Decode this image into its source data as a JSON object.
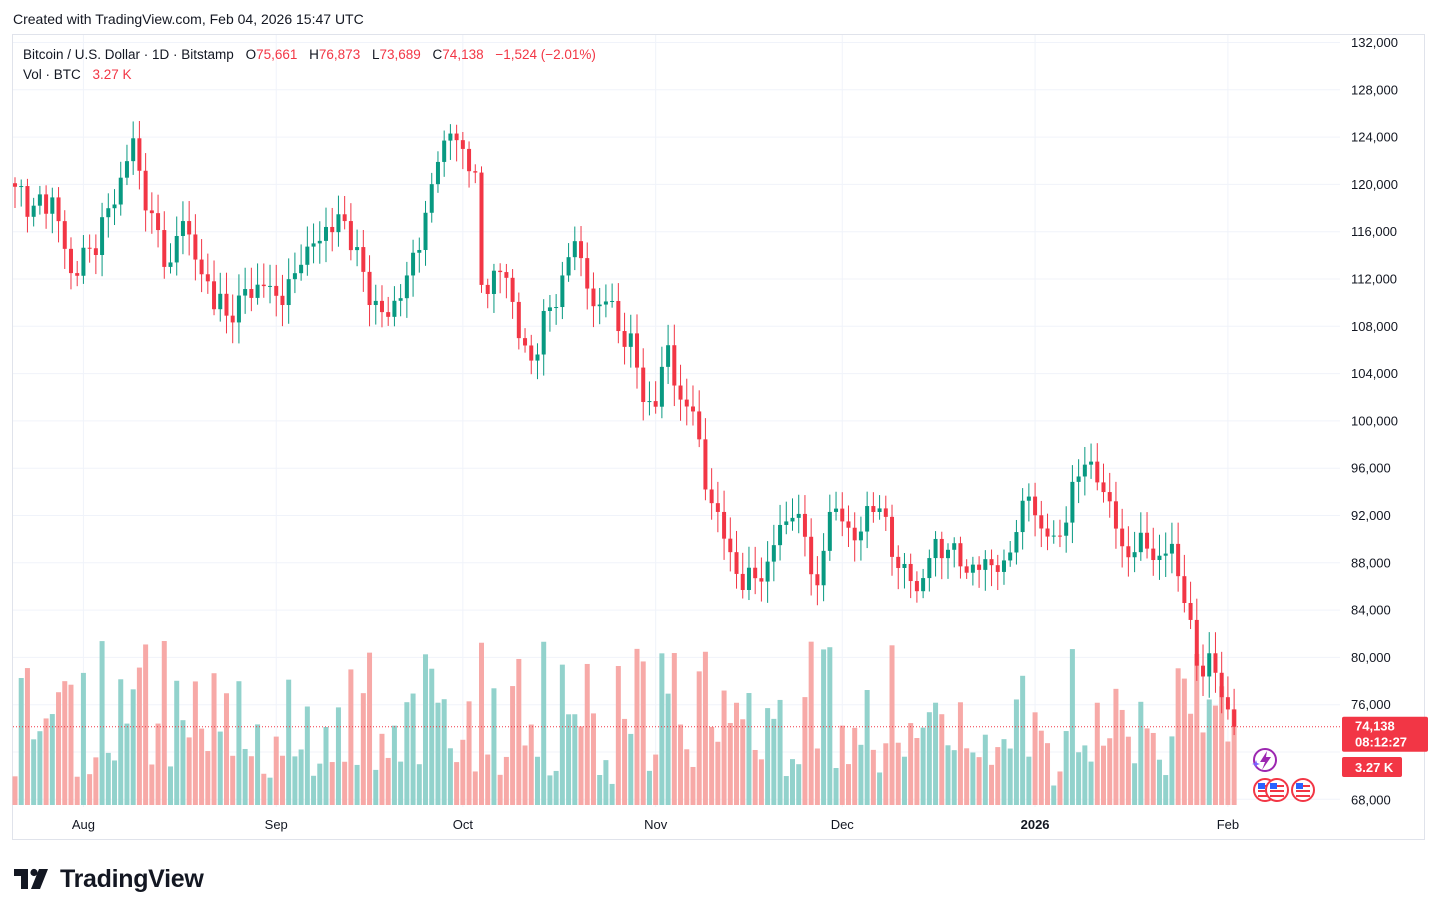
{
  "caption": "Created with TradingView.com, Feb 04, 2026 15:47 UTC",
  "legend": {
    "symbol": "Bitcoin / U.S. Dollar · 1D · Bitstamp",
    "o_label": "O",
    "o_value": "75,661",
    "h_label": "H",
    "h_value": "76,873",
    "l_label": "L",
    "l_value": "73,689",
    "c_label": "C",
    "c_value": "74,138",
    "change": "−1,524 (−2.01%)",
    "vol_label": "Vol · BTC",
    "vol_value": "3.27 K"
  },
  "price_tag": {
    "price": "74,138",
    "countdown": "08:12:27",
    "volume": "3.27 K"
  },
  "brand": "TradingView",
  "colors": {
    "up": "#089981",
    "down": "#f23645",
    "up_vol": "#92d2cc",
    "down_vol": "#f7a9a7",
    "grid": "#f0f3fa",
    "text": "#131722"
  },
  "chart_data": {
    "type": "candlestick",
    "title": "Bitcoin / U.S. Dollar · 1D · Bitstamp",
    "ylim": [
      68000,
      132000
    ],
    "y_ticks": [
      "132,000",
      "128,000",
      "124,000",
      "120,000",
      "116,000",
      "112,000",
      "108,000",
      "104,000",
      "100,000",
      "96,000",
      "92,000",
      "88,000",
      "84,000",
      "80,000",
      "76,000",
      "68,000"
    ],
    "y_tick_values": [
      132000,
      128000,
      124000,
      120000,
      116000,
      112000,
      108000,
      104000,
      100000,
      96000,
      92000,
      88000,
      84000,
      80000,
      76000,
      68000
    ],
    "x_labels": [
      {
        "label": "Aug",
        "day": 11
      },
      {
        "label": "Sep",
        "day": 42
      },
      {
        "label": "Oct",
        "day": 72
      },
      {
        "label": "Nov",
        "day": 103
      },
      {
        "label": "Dec",
        "day": 133
      },
      {
        "label": "2026",
        "day": 164,
        "bold": true
      },
      {
        "label": "Feb",
        "day": 195
      }
    ],
    "close_anchors": [
      [
        0,
        119800
      ],
      [
        3,
        118200
      ],
      [
        6,
        118900
      ],
      [
        9,
        112500
      ],
      [
        12,
        114600
      ],
      [
        16,
        118300
      ],
      [
        19,
        123900
      ],
      [
        21,
        117800
      ],
      [
        25,
        113400
      ],
      [
        27,
        116900
      ],
      [
        30,
        112400
      ],
      [
        34,
        108900
      ],
      [
        36,
        110600
      ],
      [
        40,
        111400
      ],
      [
        43,
        109800
      ],
      [
        46,
        113200
      ],
      [
        50,
        116400
      ],
      [
        53,
        116900
      ],
      [
        55,
        114700
      ],
      [
        57,
        109800
      ],
      [
        60,
        108800
      ],
      [
        63,
        112300
      ],
      [
        66,
        117600
      ],
      [
        68,
        121900
      ],
      [
        70,
        124300
      ],
      [
        72,
        123000
      ],
      [
        74,
        121000
      ],
      [
        75,
        111500
      ],
      [
        77,
        112700
      ],
      [
        79,
        112100
      ],
      [
        81,
        107000
      ],
      [
        83,
        105100
      ],
      [
        86,
        109600
      ],
      [
        88,
        112300
      ],
      [
        90,
        115200
      ],
      [
        93,
        109700
      ],
      [
        95,
        110100
      ],
      [
        97,
        107600
      ],
      [
        99,
        107400
      ],
      [
        101,
        101600
      ],
      [
        103,
        101200
      ],
      [
        105,
        106400
      ],
      [
        107,
        101800
      ],
      [
        109,
        100800
      ],
      [
        111,
        94200
      ],
      [
        113,
        92300
      ],
      [
        115,
        88900
      ],
      [
        117,
        85700
      ],
      [
        119,
        86700
      ],
      [
        121,
        88100
      ],
      [
        123,
        91200
      ],
      [
        125,
        91800
      ],
      [
        127,
        90200
      ],
      [
        129,
        86100
      ],
      [
        131,
        92300
      ],
      [
        133,
        91500
      ],
      [
        135,
        89900
      ],
      [
        137,
        92800
      ],
      [
        139,
        92600
      ],
      [
        141,
        88500
      ],
      [
        143,
        87900
      ],
      [
        145,
        85600
      ],
      [
        147,
        88400
      ],
      [
        150,
        89100
      ],
      [
        152,
        87700
      ],
      [
        155,
        87400
      ],
      [
        157,
        87800
      ],
      [
        159,
        88200
      ],
      [
        161,
        90600
      ],
      [
        163,
        93600
      ],
      [
        165,
        90900
      ],
      [
        167,
        90300
      ],
      [
        169,
        91400
      ],
      [
        171,
        95300
      ],
      [
        172,
        96300
      ],
      [
        174,
        94800
      ],
      [
        176,
        93200
      ],
      [
        178,
        89400
      ],
      [
        180,
        88900
      ],
      [
        182,
        89200
      ],
      [
        184,
        88600
      ],
      [
        186,
        89600
      ],
      [
        188,
        84600
      ],
      [
        190,
        79300
      ],
      [
        193,
        78700
      ],
      [
        195,
        75600
      ],
      [
        196,
        74138
      ]
    ],
    "last_close": 74138
  }
}
